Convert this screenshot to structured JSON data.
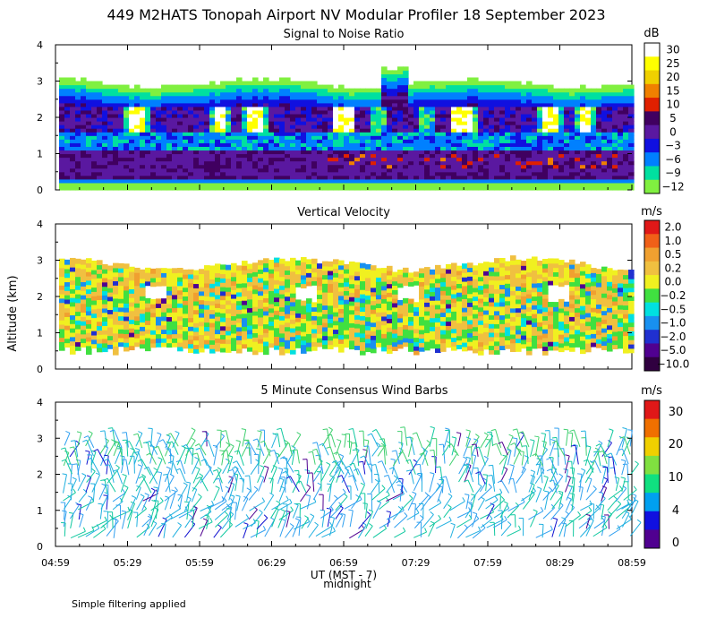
{
  "title": "449 M2HATS Tonopah Airport NV Modular Profiler 18 September 2023",
  "y_axis_label": "Altitude (km)",
  "x_axis": {
    "ticks": [
      "04:59",
      "05:29",
      "05:59",
      "06:29",
      "06:59",
      "07:29",
      "07:59",
      "08:29",
      "08:59"
    ],
    "label": "UT  (MST - 7)",
    "sublabel": "midnight"
  },
  "footnote": "Simple filtering applied",
  "chart_data": [
    {
      "type": "heatmap",
      "title": "Signal to Noise Ratio",
      "ylim": [
        0,
        4
      ],
      "yticks": [
        "0",
        "1",
        "2",
        "3",
        "4"
      ],
      "colorbar": {
        "unit": "dB",
        "labels": [
          "30",
          "25",
          "20",
          "15",
          "10",
          "5",
          "0",
          "−3",
          "−6",
          "−9",
          "−12"
        ],
        "colors": [
          "#ffffff",
          "#ffff00",
          "#f0d000",
          "#f08000",
          "#e02000",
          "#400060",
          "#5a18a0",
          "#1010e0",
          "#0080ff",
          "#00e0a0",
          "#80f040"
        ]
      }
    },
    {
      "type": "heatmap",
      "title": "Vertical Velocity",
      "ylim": [
        0,
        4
      ],
      "yticks": [
        "0",
        "1",
        "2",
        "3",
        "4"
      ],
      "colorbar": {
        "unit": "m/s",
        "labels": [
          "2.0",
          "1.0",
          "0.5",
          "0.2",
          "0.0",
          "−0.2",
          "−0.5",
          "−1.0",
          "−2.0",
          "−5.0",
          "−10.0"
        ],
        "colors": [
          "#e01818",
          "#f06018",
          "#f0a030",
          "#f0c040",
          "#f0f020",
          "#40e040",
          "#00e0e0",
          "#1890f0",
          "#2030d0",
          "#500090",
          "#300040"
        ]
      }
    },
    {
      "type": "scatter",
      "title": "5 Minute Consensus Wind Barbs",
      "ylim": [
        0,
        4
      ],
      "yticks": [
        "0",
        "1",
        "2",
        "3",
        "4"
      ],
      "colorbar": {
        "unit": "m/s",
        "labels": [
          "30",
          "20",
          "10",
          "4",
          "0"
        ],
        "colors": [
          "#e01818",
          "#f07000",
          "#f0d000",
          "#80e040",
          "#10e080",
          "#00a0f0",
          "#1010e0",
          "#500090"
        ]
      }
    }
  ]
}
